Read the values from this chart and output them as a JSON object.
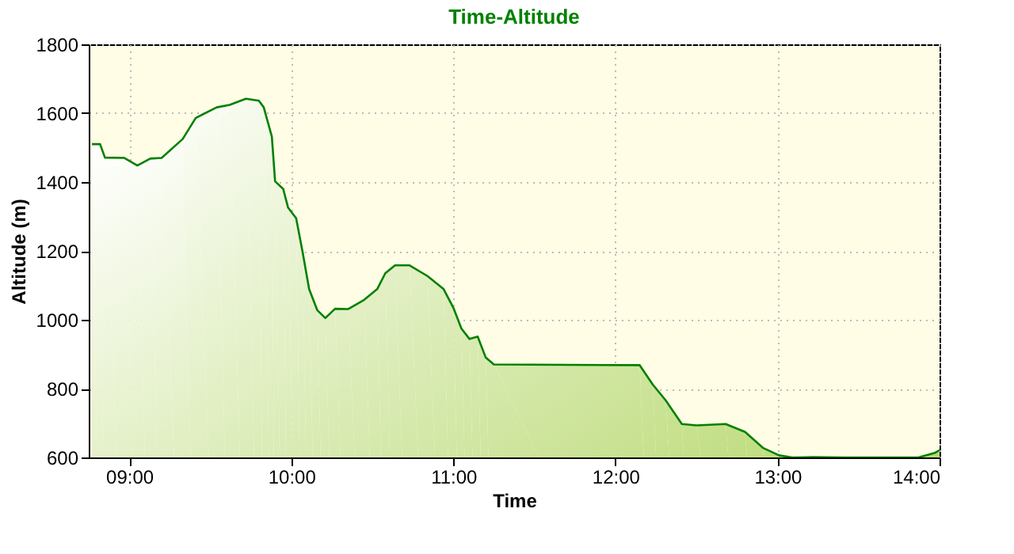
{
  "chart_data": {
    "type": "area",
    "title": "Time-Altitude",
    "xlabel": "Time",
    "ylabel": "Altitude (m)",
    "x": [
      8.77,
      8.82,
      8.85,
      8.97,
      9.05,
      9.13,
      9.2,
      9.33,
      9.41,
      9.54,
      9.62,
      9.72,
      9.8,
      9.83,
      9.88,
      9.9,
      9.95,
      9.98,
      10.03,
      10.07,
      10.11,
      10.16,
      10.21,
      10.27,
      10.35,
      10.45,
      10.53,
      10.58,
      10.64,
      10.73,
      10.84,
      10.94,
      11.0,
      11.05,
      11.1,
      11.15,
      11.2,
      11.25,
      12.15,
      12.23,
      12.31,
      12.41,
      12.5,
      12.68,
      12.8,
      12.91,
      13.01,
      13.09,
      13.22,
      13.41,
      13.87,
      13.97,
      14.0
    ],
    "series": [
      {
        "color": "#008000",
        "values": [
          1510,
          1510,
          1471,
          1470,
          1448,
          1468,
          1470,
          1525,
          1586,
          1617,
          1624,
          1642,
          1636,
          1617,
          1532,
          1402,
          1380,
          1326,
          1295,
          1196,
          1089,
          1028,
          1005,
          1032,
          1031,
          1058,
          1089,
          1135,
          1158,
          1158,
          1127,
          1089,
          1035,
          974,
          944,
          951,
          890,
          870,
          868,
          812,
          766,
          697,
          693,
          697,
          674,
          628,
          606,
          600,
          601,
          600,
          600,
          613,
          621
        ]
      }
    ],
    "xlim": [
      8.75,
      14.0
    ],
    "ylim": [
      600,
      1800
    ],
    "xticks": [
      {
        "value": 9,
        "label": "09:00"
      },
      {
        "value": 10,
        "label": "10:00"
      },
      {
        "value": 11,
        "label": "11:00"
      },
      {
        "value": 12,
        "label": "12:00"
      },
      {
        "value": 13,
        "label": "13:00"
      },
      {
        "value": 14,
        "label": "14:00"
      }
    ],
    "yticks": [
      600,
      800,
      1000,
      1200,
      1400,
      1600,
      1800
    ],
    "grid": true
  }
}
